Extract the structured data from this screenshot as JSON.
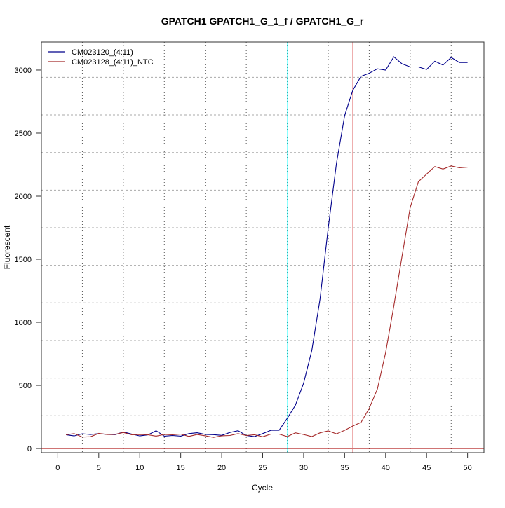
{
  "chart_data": {
    "type": "line",
    "title": "GPATCH1  GPATCH1_G_1_f / GPATCH1_G_r",
    "xlabel": "Cycle",
    "ylabel": "Fluorescent",
    "xlim": [
      -2,
      52
    ],
    "ylim": [
      -33,
      3222
    ],
    "xticks": [
      0,
      5,
      10,
      15,
      20,
      25,
      30,
      35,
      40,
      45,
      50
    ],
    "yticks": [
      0,
      500,
      1000,
      1500,
      2000,
      2500,
      3000
    ],
    "grid": true,
    "vgrid": [
      3,
      8,
      13,
      18,
      23,
      28,
      33,
      38,
      43,
      48
    ],
    "hgrid": [
      260,
      558,
      856,
      1154,
      1452,
      1750,
      2048,
      2346,
      2644,
      2942
    ],
    "legend_position": "top-left",
    "x": [
      1,
      2,
      3,
      4,
      5,
      6,
      7,
      8,
      9,
      10,
      11,
      12,
      13,
      14,
      15,
      16,
      17,
      18,
      19,
      20,
      21,
      22,
      23,
      24,
      25,
      26,
      27,
      28,
      29,
      30,
      31,
      32,
      33,
      34,
      35,
      36,
      37,
      38,
      39,
      40,
      41,
      42,
      43,
      44,
      45,
      46,
      47,
      48,
      49,
      50
    ],
    "series": [
      {
        "name": "CM023120_(4:11)",
        "color": "#00008B",
        "values": [
          109,
          100,
          117,
          111,
          118,
          112,
          110,
          131,
          115,
          100,
          108,
          141,
          98,
          103,
          98,
          118,
          125,
          112,
          110,
          104,
          127,
          141,
          103,
          94,
          118,
          144,
          144,
          240,
          343,
          518,
          778,
          1185,
          1750,
          2260,
          2640,
          2840,
          2950,
          2975,
          3010,
          3000,
          3105,
          3050,
          3025,
          3025,
          3005,
          3070,
          3040,
          3100,
          3060,
          3060
        ]
      },
      {
        "name": "CM023128_(4:11)_NTC",
        "color": "#A52A2A",
        "values": [
          109,
          118,
          91,
          93,
          120,
          111,
          112,
          127,
          109,
          111,
          109,
          98,
          112,
          109,
          114,
          96,
          111,
          101,
          88,
          101,
          103,
          118,
          103,
          109,
          93,
          114,
          114,
          95,
          124,
          111,
          95,
          124,
          139,
          116,
          144,
          178,
          207,
          318,
          472,
          760,
          1130,
          1520,
          1910,
          2115,
          2175,
          2235,
          2215,
          2240,
          2225,
          2230
        ]
      }
    ],
    "vlines": [
      {
        "x": 28.05,
        "color": "#00FFFF"
      },
      {
        "x": 36.0,
        "color": "#E07070"
      }
    ],
    "hline": {
      "y": 0,
      "color": "#B22222"
    }
  }
}
